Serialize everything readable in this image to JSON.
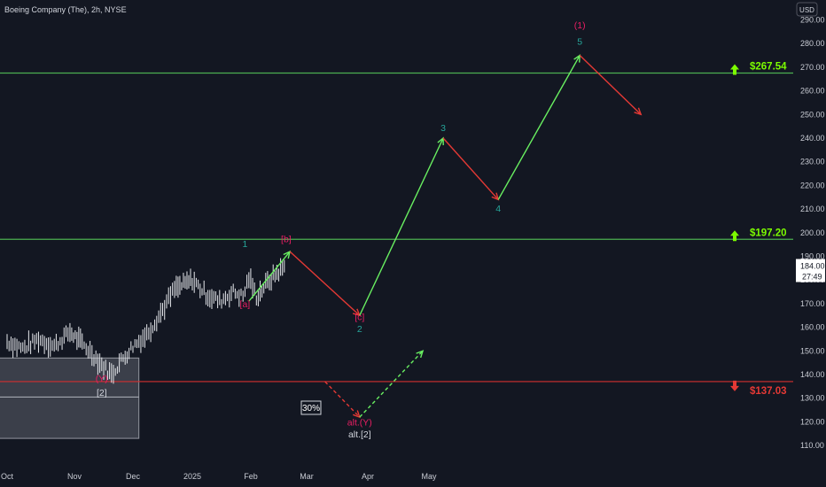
{
  "header": {
    "symbol_line": "Boeing Company (The), 2h, NYSE",
    "currency": "USD"
  },
  "colors": {
    "background": "#131722",
    "axis_text": "#c9ccd4",
    "green": "#4caf50",
    "bright_green": "#7CFC00",
    "red": "#e53935",
    "teal": "#26a69a",
    "pink": "#e91e63",
    "white": "#d1d4dc"
  },
  "chart_data": {
    "type": "line",
    "title": "Boeing Company (The), 2h, NYSE",
    "xlabel": "",
    "ylabel": "",
    "ylim": [
      106,
      292
    ],
    "x_ticks": [
      "Oct",
      "Nov",
      "Dec",
      "2025",
      "Feb",
      "Mar",
      "Apr",
      "May"
    ],
    "y_ticks": [
      110,
      120,
      130,
      140,
      150,
      160,
      170,
      180,
      190,
      200,
      210,
      220,
      230,
      240,
      250,
      260,
      270,
      280,
      290
    ],
    "grid": false,
    "current_price": {
      "value": "184.00",
      "countdown": "27:49"
    },
    "price_series": {
      "name": "",
      "x": [
        "Oct 01",
        "Oct 08",
        "Oct 15",
        "Oct 22",
        "Oct 29",
        "Nov 05",
        "Nov 10",
        "Nov 15",
        "Nov 20",
        "Nov 25",
        "Dec 01",
        "Dec 08",
        "Dec 15",
        "Dec 22",
        "Jan 01",
        "Jan 08",
        "Jan 15",
        "Jan 22",
        "Jan 27",
        "Jan 30",
        "Feb 04",
        "Feb 10",
        "Feb 15",
        "Feb 20"
      ],
      "values": [
        154,
        151,
        155,
        152,
        158,
        153,
        149,
        144,
        140,
        146,
        152,
        157,
        166,
        176,
        180,
        174,
        171,
        175,
        173,
        181,
        173,
        179,
        183,
        186
      ]
    },
    "levels": [
      {
        "label": "$267.54",
        "value": 267.54,
        "color": "green",
        "arrow": "up"
      },
      {
        "label": "$197.20",
        "value": 197.2,
        "color": "green",
        "arrow": "up"
      },
      {
        "label": "$137.03",
        "value": 137.03,
        "color": "red",
        "arrow": "down"
      }
    ],
    "projection": [
      {
        "from": [
          "Jan 30",
          171
        ],
        "to": [
          "Feb 22",
          192
        ],
        "color": "green",
        "dashed": false
      },
      {
        "from": [
          "Feb 22",
          192
        ],
        "to": [
          "Mar 27",
          165
        ],
        "color": "red",
        "dashed": false
      },
      {
        "from": [
          "Mar 27",
          165
        ],
        "to": [
          "May 08",
          240
        ],
        "color": "green",
        "dashed": false
      },
      {
        "from": [
          "May 08",
          240
        ],
        "to": [
          "Jun 05",
          214
        ],
        "color": "red",
        "dashed": false
      },
      {
        "from": [
          "Jun 05",
          214
        ],
        "to": [
          "Jul 15",
          275
        ],
        "color": "green",
        "dashed": false
      },
      {
        "from": [
          "Jul 15",
          275
        ],
        "to": [
          "Aug 15",
          250
        ],
        "color": "red",
        "dashed": false
      },
      {
        "from": [
          "Mar 10",
          137
        ],
        "to": [
          "Mar 27",
          122
        ],
        "color": "red",
        "dashed": true
      },
      {
        "from": [
          "Mar 27",
          122
        ],
        "to": [
          "Apr 28",
          150
        ],
        "color": "green",
        "dashed": true
      }
    ],
    "wave_labels": [
      {
        "text": "1",
        "at": [
          "Jan 28",
          194
        ],
        "color": "teal"
      },
      {
        "text": "[a]",
        "at": [
          "Jan 28",
          168.5
        ],
        "color": "pink"
      },
      {
        "text": "[b]",
        "at": [
          "Feb 20",
          196
        ],
        "color": "pink"
      },
      {
        "text": "[c]",
        "at": [
          "Mar 27",
          163
        ],
        "color": "pink"
      },
      {
        "text": "2",
        "at": [
          "Mar 27",
          158
        ],
        "color": "teal"
      },
      {
        "text": "3",
        "at": [
          "May 08",
          243
        ],
        "color": "teal"
      },
      {
        "text": "4",
        "at": [
          "Jun 05",
          209
        ],
        "color": "teal"
      },
      {
        "text": "5",
        "at": [
          "Jul 15",
          279.5
        ],
        "color": "teal"
      },
      {
        "text": "(1)",
        "at": [
          "Jul 15",
          286.5
        ],
        "color": "pink"
      },
      {
        "text": "(Y)",
        "at": [
          "Nov 15",
          137
        ],
        "color": "pink"
      },
      {
        "text": "[2]",
        "at": [
          "Nov 15",
          131
        ],
        "color": "white"
      },
      {
        "text": "alt.(Y)",
        "at": [
          "Mar 27",
          118.5
        ],
        "color": "pink"
      },
      {
        "text": "alt.[2]",
        "at": [
          "Mar 27",
          113.5
        ],
        "color": "white"
      }
    ],
    "probability_badge": "30%",
    "zone": {
      "from": [
        "Sep 24",
        113
      ],
      "to": [
        "Dec 04",
        147
      ],
      "divider": 130.5
    }
  }
}
